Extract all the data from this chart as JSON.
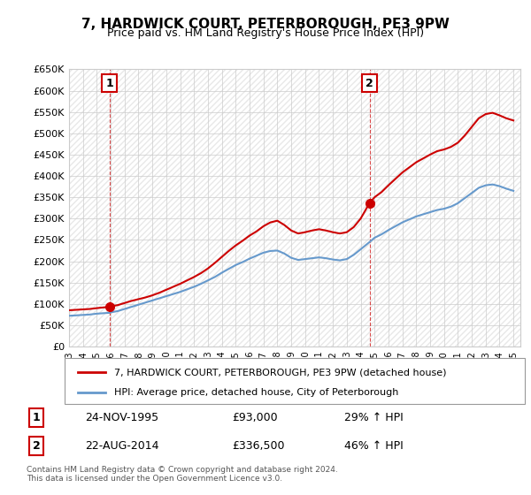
{
  "title": "7, HARDWICK COURT, PETERBOROUGH, PE3 9PW",
  "subtitle": "Price paid vs. HM Land Registry's House Price Index (HPI)",
  "xlabel": "",
  "ylabel": "",
  "ylim": [
    0,
    650000
  ],
  "xlim_start": 1993.0,
  "xlim_end": 2025.5,
  "yticks": [
    0,
    50000,
    100000,
    150000,
    200000,
    250000,
    300000,
    350000,
    400000,
    450000,
    500000,
    550000,
    600000,
    650000
  ],
  "ytick_labels": [
    "£0",
    "£50K",
    "£100K",
    "£150K",
    "£200K",
    "£250K",
    "£300K",
    "£350K",
    "£400K",
    "£450K",
    "£500K",
    "£550K",
    "£600K",
    "£650K"
  ],
  "xticks": [
    1993,
    1994,
    1995,
    1996,
    1997,
    1998,
    1999,
    2000,
    2001,
    2002,
    2003,
    2004,
    2005,
    2006,
    2007,
    2008,
    2009,
    2010,
    2011,
    2012,
    2013,
    2014,
    2015,
    2016,
    2017,
    2018,
    2019,
    2020,
    2021,
    2022,
    2023,
    2024,
    2025
  ],
  "point1_x": 1995.9,
  "point1_y": 93000,
  "point1_label": "1",
  "point1_date": "24-NOV-1995",
  "point1_price": "£93,000",
  "point1_hpi": "29% ↑ HPI",
  "point2_x": 2014.64,
  "point2_y": 336500,
  "point2_label": "2",
  "point2_date": "22-AUG-2014",
  "point2_price": "£336,500",
  "point2_hpi": "46% ↑ HPI",
  "red_line_color": "#cc0000",
  "blue_line_color": "#6699cc",
  "background_color": "#ffffff",
  "grid_color": "#cccccc",
  "hatch_color": "#dddddd",
  "legend_label_red": "7, HARDWICK COURT, PETERBOROUGH, PE3 9PW (detached house)",
  "legend_label_blue": "HPI: Average price, detached house, City of Peterborough",
  "footer": "Contains HM Land Registry data © Crown copyright and database right 2024.\nThis data is licensed under the Open Government Licence v3.0.",
  "red_x": [
    1993.0,
    1993.5,
    1994.0,
    1994.5,
    1995.0,
    1995.9,
    1996.0,
    1996.5,
    1997.0,
    1997.5,
    1998.0,
    1998.5,
    1999.0,
    1999.5,
    2000.0,
    2000.5,
    2001.0,
    2001.5,
    2002.0,
    2002.5,
    2003.0,
    2003.5,
    2004.0,
    2004.5,
    2005.0,
    2005.5,
    2006.0,
    2006.5,
    2007.0,
    2007.5,
    2008.0,
    2008.5,
    2009.0,
    2009.5,
    2010.0,
    2010.5,
    2011.0,
    2011.5,
    2012.0,
    2012.5,
    2013.0,
    2013.5,
    2014.0,
    2014.64,
    2015.0,
    2015.5,
    2016.0,
    2016.5,
    2017.0,
    2017.5,
    2018.0,
    2018.5,
    2019.0,
    2019.5,
    2020.0,
    2020.5,
    2021.0,
    2021.5,
    2022.0,
    2022.5,
    2023.0,
    2023.5,
    2024.0,
    2024.5,
    2025.0
  ],
  "red_y": [
    85000,
    86000,
    87000,
    88000,
    90000,
    93000,
    94000,
    97000,
    102000,
    107000,
    111000,
    115000,
    120000,
    126000,
    133000,
    140000,
    147000,
    155000,
    163000,
    172000,
    183000,
    196000,
    210000,
    224000,
    237000,
    248000,
    260000,
    270000,
    282000,
    291000,
    295000,
    285000,
    272000,
    265000,
    268000,
    272000,
    275000,
    272000,
    268000,
    265000,
    268000,
    280000,
    300000,
    336500,
    350000,
    362000,
    378000,
    393000,
    408000,
    420000,
    432000,
    441000,
    450000,
    458000,
    462000,
    468000,
    478000,
    495000,
    515000,
    535000,
    545000,
    548000,
    542000,
    535000,
    530000
  ],
  "blue_x": [
    1993.0,
    1993.5,
    1994.0,
    1994.5,
    1995.0,
    1995.9,
    1996.0,
    1996.5,
    1997.0,
    1997.5,
    1998.0,
    1998.5,
    1999.0,
    1999.5,
    2000.0,
    2000.5,
    2001.0,
    2001.5,
    2002.0,
    2002.5,
    2003.0,
    2003.5,
    2004.0,
    2004.5,
    2005.0,
    2005.5,
    2006.0,
    2006.5,
    2007.0,
    2007.5,
    2008.0,
    2008.5,
    2009.0,
    2009.5,
    2010.0,
    2010.5,
    2011.0,
    2011.5,
    2012.0,
    2012.5,
    2013.0,
    2013.5,
    2014.0,
    2014.64,
    2015.0,
    2015.5,
    2016.0,
    2016.5,
    2017.0,
    2017.5,
    2018.0,
    2018.5,
    2019.0,
    2019.5,
    2020.0,
    2020.5,
    2021.0,
    2021.5,
    2022.0,
    2022.5,
    2023.0,
    2023.5,
    2024.0,
    2024.5,
    2025.0
  ],
  "blue_y": [
    72000,
    73000,
    74000,
    75000,
    77000,
    79000,
    80000,
    83000,
    88000,
    93000,
    98000,
    103000,
    108000,
    113000,
    118000,
    123000,
    128000,
    134000,
    140000,
    147000,
    155000,
    163000,
    173000,
    182000,
    191000,
    198000,
    206000,
    213000,
    220000,
    224000,
    225000,
    218000,
    208000,
    203000,
    205000,
    207000,
    209000,
    207000,
    204000,
    202000,
    205000,
    215000,
    228000,
    245000,
    255000,
    263000,
    273000,
    282000,
    291000,
    298000,
    305000,
    310000,
    315000,
    320000,
    323000,
    328000,
    336000,
    348000,
    360000,
    372000,
    378000,
    380000,
    376000,
    370000,
    365000
  ]
}
